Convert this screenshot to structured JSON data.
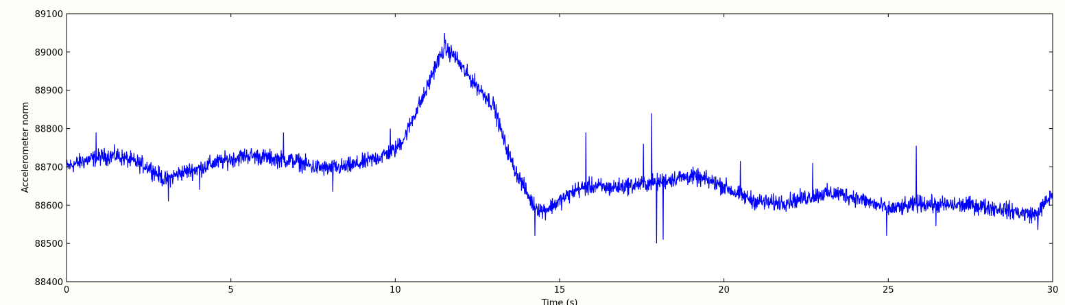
{
  "chart_data": {
    "type": "line",
    "title": "",
    "xlabel": "Time (s)",
    "ylabel": "Accelerometer norm",
    "xlim": [
      0,
      30
    ],
    "ylim": [
      88400,
      89100
    ],
    "xticks": [
      0,
      5,
      10,
      15,
      20,
      25,
      30
    ],
    "xtick_labels": [
      "0",
      "5",
      "10",
      "15",
      "20",
      "25",
      "30"
    ],
    "yticks": [
      88400,
      88500,
      88600,
      88700,
      88800,
      88900,
      89000,
      89100
    ],
    "ytick_labels": [
      "88400",
      "88500",
      "88600",
      "88700",
      "88800",
      "88900",
      "89000",
      "89100"
    ],
    "grid": false,
    "line_color": "#0000ff",
    "series": [
      {
        "name": "",
        "x": [
          0,
          0.5,
          1,
          1.5,
          2,
          2.5,
          3,
          3.5,
          4,
          4.5,
          5,
          5.5,
          6,
          6.5,
          7,
          7.5,
          8,
          8.5,
          9,
          9.5,
          10,
          10.3,
          10.6,
          10.9,
          11.2,
          11.5,
          11.8,
          12.1,
          12.4,
          12.7,
          13,
          13.3,
          13.6,
          13.9,
          14.2,
          14.5,
          15,
          15.5,
          16,
          16.5,
          17,
          17.5,
          18,
          18.5,
          19,
          19.5,
          20,
          20.5,
          21,
          21.5,
          22,
          22.5,
          23,
          23.5,
          24,
          24.5,
          25,
          25.5,
          26,
          26.5,
          27,
          27.5,
          28,
          28.5,
          29,
          29.5,
          30
        ],
        "values": [
          88700,
          88715,
          88725,
          88730,
          88715,
          88700,
          88665,
          88685,
          88695,
          88710,
          88720,
          88730,
          88725,
          88720,
          88715,
          88700,
          88695,
          88700,
          88710,
          88725,
          88745,
          88780,
          88840,
          88890,
          88960,
          89010,
          88990,
          88950,
          88920,
          88890,
          88860,
          88770,
          88700,
          88650,
          88600,
          88585,
          88610,
          88640,
          88650,
          88645,
          88650,
          88655,
          88660,
          88670,
          88675,
          88665,
          88650,
          88625,
          88610,
          88605,
          88610,
          88620,
          88630,
          88630,
          88620,
          88605,
          88590,
          88595,
          88605,
          88600,
          88600,
          88600,
          88595,
          88590,
          88580,
          88575,
          88630
        ]
      }
    ],
    "spikes": [
      {
        "x": 0.9,
        "value": 88790
      },
      {
        "x": 3.1,
        "value": 88610
      },
      {
        "x": 4.05,
        "value": 88640
      },
      {
        "x": 6.6,
        "value": 88790
      },
      {
        "x": 8.1,
        "value": 88635
      },
      {
        "x": 9.85,
        "value": 88800
      },
      {
        "x": 11.5,
        "value": 89050
      },
      {
        "x": 14.25,
        "value": 88520
      },
      {
        "x": 15.8,
        "value": 88790
      },
      {
        "x": 17.55,
        "value": 88760
      },
      {
        "x": 17.8,
        "value": 88840
      },
      {
        "x": 17.95,
        "value": 88500
      },
      {
        "x": 18.15,
        "value": 88510
      },
      {
        "x": 20.5,
        "value": 88715
      },
      {
        "x": 22.7,
        "value": 88710
      },
      {
        "x": 24.95,
        "value": 88520
      },
      {
        "x": 25.85,
        "value": 88755
      },
      {
        "x": 26.45,
        "value": 88545
      },
      {
        "x": 29.55,
        "value": 88535
      }
    ]
  }
}
